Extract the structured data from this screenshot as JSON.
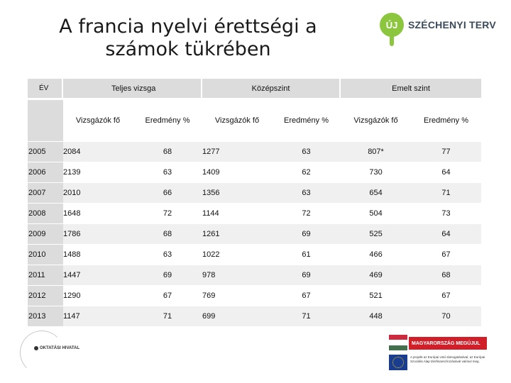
{
  "title": "A francia nyelvi érettségi a számok tükrében",
  "brand": {
    "badge": "ÚJ",
    "name": "SZÉCHENYI TERV",
    "accent": "#8cc63f"
  },
  "table": {
    "year_header": "ÉV",
    "groups": [
      "Teljes vizsga",
      "Középszint",
      "Emelt szint"
    ],
    "subheaders": [
      "Vizsgázók fő",
      "Eredmény %",
      "Vizsgázók fő",
      "Eredmény %",
      "Vizsgázók fő",
      "Eredmény %"
    ],
    "rows": [
      {
        "year": "2005",
        "cells": [
          "2084",
          "68",
          "1277",
          "63",
          "807*",
          "77"
        ]
      },
      {
        "year": "2006",
        "cells": [
          "2139",
          "63",
          "1409",
          "62",
          "730",
          "64"
        ]
      },
      {
        "year": "2007",
        "cells": [
          "2010",
          "66",
          "1356",
          "63",
          "654",
          "71"
        ]
      },
      {
        "year": "2008",
        "cells": [
          "1648",
          "72",
          "1144",
          "72",
          "504",
          "73"
        ]
      },
      {
        "year": "2009",
        "cells": [
          "1786",
          "68",
          "1261",
          "69",
          "525",
          "64"
        ]
      },
      {
        "year": "2010",
        "cells": [
          "1488",
          "63",
          "1022",
          "61",
          "466",
          "67"
        ]
      },
      {
        "year": "2011",
        "cells": [
          "1447",
          "69",
          "978",
          "69",
          "469",
          "68"
        ]
      },
      {
        "year": "2012",
        "cells": [
          "1290",
          "67",
          "769",
          "67",
          "521",
          "67"
        ]
      },
      {
        "year": "2013",
        "cells": [
          "1147",
          "71",
          "699",
          "71",
          "448",
          "70"
        ]
      }
    ]
  },
  "footer": {
    "agency": "OKTATÁSI HIVATAL",
    "banner": "MAGYARORSZÁG MEGÚJUL",
    "eu_text": "A projekt az Európai Unió támogatásával, az Európai Szociális Alap társfinanszírozásával valósul meg.",
    "flag_colors": [
      "#cd2a3e",
      "#ffffff",
      "#436f4d"
    ]
  }
}
